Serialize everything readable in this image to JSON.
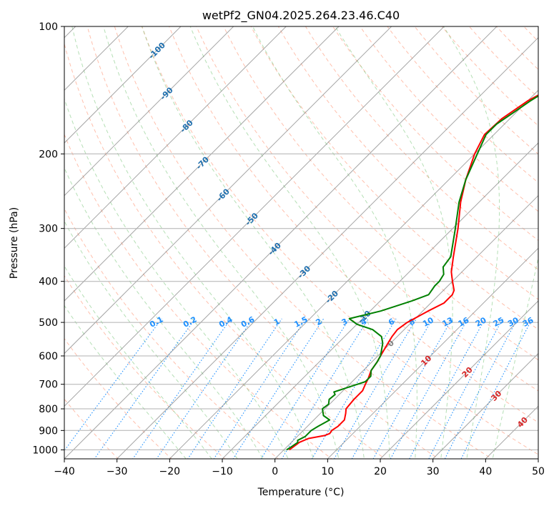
{
  "chart_data": {
    "type": "skew-t",
    "title": "wetPf2_GN04.2025.264.23.46.C40",
    "xlabel": "Temperature (°C)",
    "ylabel": "Pressure (hPa)",
    "xlim": [
      -40,
      50
    ],
    "ylim": [
      1050,
      100
    ],
    "x_ticks": [
      -40,
      -30,
      -20,
      -10,
      0,
      10,
      20,
      30,
      40,
      50
    ],
    "y_ticks": [
      1000,
      900,
      800,
      700,
      600,
      500,
      400,
      300,
      200,
      100
    ],
    "grid": true,
    "colors": {
      "temperature": "#ff0000",
      "dewpoint": "#008000",
      "isotherm": "#808080",
      "dry_adiabat": "#ff8c69",
      "moist_adiabat": "#5cb85c",
      "mixing_ratio": "#1e90ff",
      "isotherm_label": "#1f6fae",
      "theta_label": "#d62728",
      "frame": "#000000"
    },
    "isotherm_labels": [
      "-100",
      "-90",
      "-80",
      "-70",
      "-60",
      "-50",
      "-40",
      "-30",
      "-20",
      "-10",
      "0",
      "10",
      "20",
      "30",
      "40"
    ],
    "mixing_ratio_labels": [
      "0.1",
      "0.2",
      "0.4",
      "0.6",
      "1",
      "1.5",
      "2",
      "3",
      "4",
      "6",
      "8",
      "10",
      "13",
      "16",
      "20",
      "25",
      "30",
      "36"
    ],
    "series": [
      {
        "name": "Temperature",
        "points": [
          [
            1000,
            1
          ],
          [
            985,
            1.2
          ],
          [
            960,
            1.5
          ],
          [
            940,
            2.5
          ],
          [
            925,
            5
          ],
          [
            915,
            5.6
          ],
          [
            900,
            5.4
          ],
          [
            880,
            5.8
          ],
          [
            850,
            5.8
          ],
          [
            820,
            4.8
          ],
          [
            800,
            4
          ],
          [
            760,
            3.7
          ],
          [
            725,
            3.7
          ],
          [
            700,
            3
          ],
          [
            680,
            2.5
          ],
          [
            650,
            1.5
          ],
          [
            620,
            1
          ],
          [
            600,
            0.5
          ],
          [
            560,
            -0.5
          ],
          [
            540,
            -1
          ],
          [
            520,
            -1.3
          ],
          [
            500,
            -0.8
          ],
          [
            470,
            1
          ],
          [
            450,
            2.5
          ],
          [
            430,
            2.5
          ],
          [
            420,
            2
          ],
          [
            400,
            0
          ],
          [
            385,
            -1.5
          ],
          [
            380,
            -2
          ],
          [
            350,
            -4.5
          ],
          [
            300,
            -9
          ],
          [
            260,
            -13.5
          ],
          [
            230,
            -16.8
          ],
          [
            200,
            -20
          ],
          [
            180,
            -21.8
          ],
          [
            165,
            -21.5
          ],
          [
            150,
            -20
          ],
          [
            140,
            -18
          ],
          [
            128,
            -14
          ],
          [
            120,
            -9
          ],
          [
            112,
            -4
          ],
          [
            106,
            -0.5
          ],
          [
            100,
            2
          ]
        ]
      },
      {
        "name": "Dewpoint",
        "points": [
          [
            1000,
            0.5
          ],
          [
            985,
            0.8
          ],
          [
            960,
            1.2
          ],
          [
            950,
            0.8
          ],
          [
            930,
            1.5
          ],
          [
            900,
            1.5
          ],
          [
            880,
            2
          ],
          [
            850,
            3
          ],
          [
            830,
            1
          ],
          [
            800,
            -0.5
          ],
          [
            780,
            -0.2
          ],
          [
            760,
            -1
          ],
          [
            740,
            -0.8
          ],
          [
            730,
            -1.5
          ],
          [
            715,
            0
          ],
          [
            700,
            1.5
          ],
          [
            690,
            2.5
          ],
          [
            670,
            2.5
          ],
          [
            650,
            1.5
          ],
          [
            620,
            1
          ],
          [
            600,
            0.5
          ],
          [
            560,
            -1.5
          ],
          [
            540,
            -3
          ],
          [
            520,
            -6
          ],
          [
            505,
            -10
          ],
          [
            490,
            -12.5
          ],
          [
            470,
            -8
          ],
          [
            445,
            -4
          ],
          [
            430,
            -2
          ],
          [
            410,
            -2.5
          ],
          [
            400,
            -2.5
          ],
          [
            385,
            -3
          ],
          [
            370,
            -4.5
          ],
          [
            350,
            -5
          ],
          [
            300,
            -9.5
          ],
          [
            260,
            -13.8
          ],
          [
            230,
            -16.8
          ],
          [
            200,
            -19.5
          ],
          [
            180,
            -21.5
          ],
          [
            170,
            -21.5
          ],
          [
            160,
            -20.5
          ],
          [
            150,
            -19.5
          ],
          [
            140,
            -18
          ],
          [
            128,
            -14.5
          ],
          [
            120,
            -9
          ],
          [
            112,
            -4
          ],
          [
            106,
            -2
          ],
          [
            100,
            0
          ]
        ]
      }
    ]
  }
}
